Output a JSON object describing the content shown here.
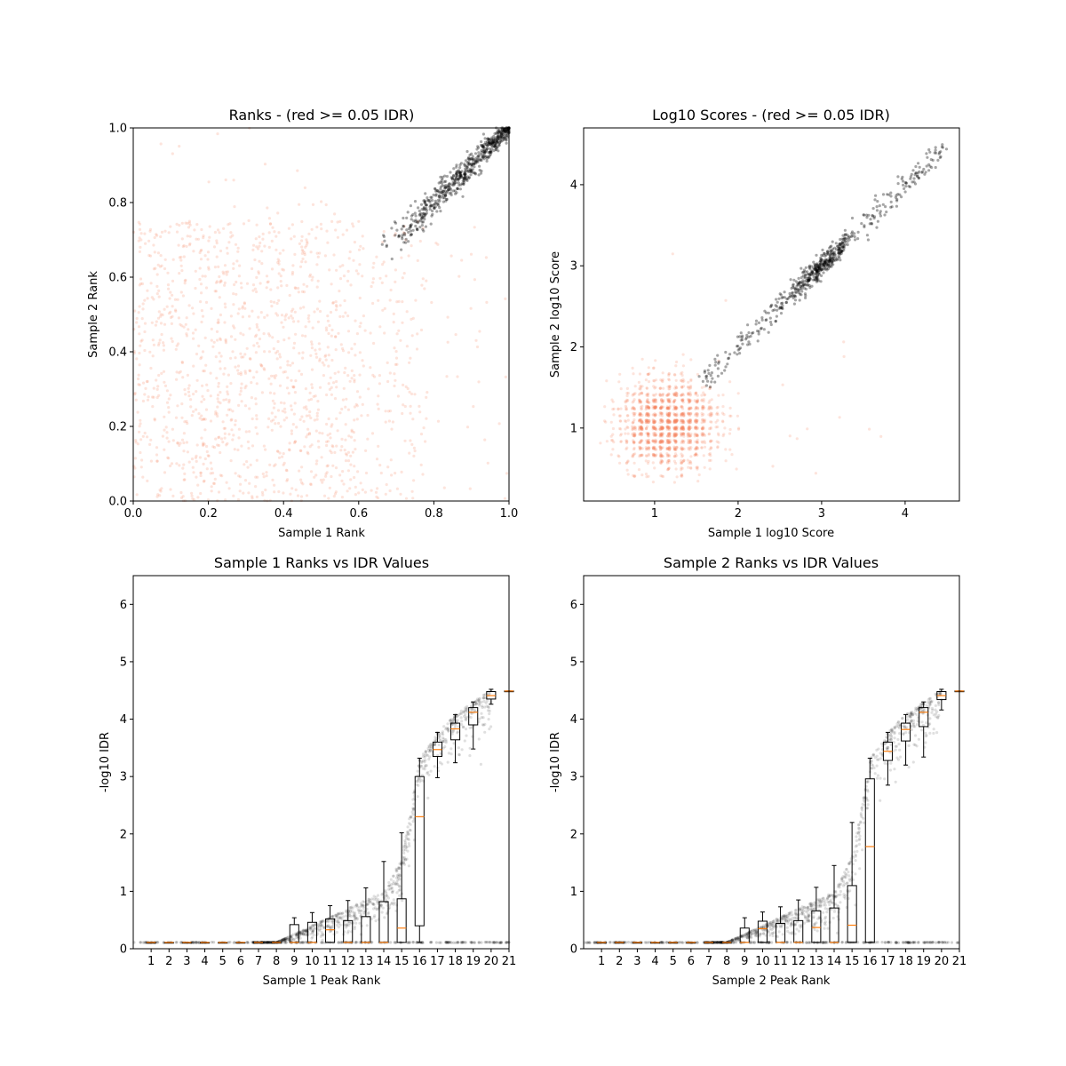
{
  "chart_data": [
    {
      "type": "scatter",
      "title": "Ranks - (red >= 0.05 IDR)",
      "xlabel": "Sample 1 Rank",
      "ylabel": "Sample 2 Rank",
      "xlim": [
        0,
        1
      ],
      "ylim": [
        0,
        1
      ],
      "xticks": [
        0.0,
        0.2,
        0.4,
        0.6,
        0.8,
        1.0
      ],
      "yticks": [
        0.0,
        0.2,
        0.4,
        0.6,
        0.8,
        1.0
      ],
      "xtick_labels": [
        "0.0",
        "0.2",
        "0.4",
        "0.6",
        "0.8",
        "1.0"
      ],
      "ytick_labels": [
        "0.0",
        "0.2",
        "0.4",
        "0.6",
        "0.8",
        "1.0"
      ],
      "grid": false,
      "series": [
        {
          "color": "#f4845f",
          "approx_count": 1400,
          "x_range": [
            0.0,
            0.78
          ],
          "y_range": [
            0.0,
            0.75
          ],
          "distribution": "uniform, sparser above ~0.75, sparse outliers elsewhere"
        },
        {
          "color": "#000000",
          "approx_count": 600,
          "x_range": [
            0.68,
            1.0
          ],
          "y_range": [
            0.68,
            1.0
          ],
          "distribution": "tight diagonal band y ≈ x, densest near 0.85–0.95"
        }
      ]
    },
    {
      "type": "scatter",
      "title": "Log10 Scores - (red >= 0.05 IDR)",
      "xlabel": "Sample 1 log10 Score",
      "ylabel": "Sample 2 log10 Score",
      "xlim": [
        0.15,
        4.65
      ],
      "ylim": [
        0.1,
        4.7
      ],
      "xticks": [
        1,
        2,
        3,
        4
      ],
      "yticks": [
        1,
        2,
        3,
        4
      ],
      "xtick_labels": [
        "1",
        "2",
        "3",
        "4"
      ],
      "ytick_labels": [
        "1",
        "2",
        "3",
        "4"
      ],
      "grid": false,
      "series": [
        {
          "color": "#f4845f",
          "approx_count": 1400,
          "center": [
            1.15,
            1.05
          ],
          "spread": [
            0.3,
            0.28
          ],
          "distribution": "dense cloud x 0.6–1.8, y 0.3–1.8"
        },
        {
          "color": "#000000",
          "approx_count": 600,
          "x_range": [
            1.55,
            4.45
          ],
          "distribution": "diagonal band y ≈ x, densest near (3.0, 3.0)"
        }
      ]
    },
    {
      "type": "box",
      "title": "Sample 1 Ranks vs IDR Values",
      "xlabel": "Sample 1 Peak Rank",
      "ylabel": "-log10 IDR",
      "xlim": [
        0,
        21
      ],
      "ylim": [
        0,
        6.5
      ],
      "xticks": [
        1,
        2,
        3,
        4,
        5,
        6,
        7,
        8,
        9,
        10,
        11,
        12,
        13,
        14,
        15,
        16,
        17,
        18,
        19,
        20,
        21
      ],
      "yticks": [
        0,
        1,
        2,
        3,
        4,
        5,
        6
      ],
      "xtick_labels": [
        "1",
        "2",
        "3",
        "4",
        "5",
        "6",
        "7",
        "8",
        "9",
        "10",
        "11",
        "12",
        "13",
        "14",
        "15",
        "16",
        "17",
        "18",
        "19",
        "20",
        "21"
      ],
      "ytick_labels": [
        "0",
        "1",
        "2",
        "3",
        "4",
        "5",
        "6"
      ],
      "grid": false,
      "boxes": [
        {
          "x": 1,
          "q1": 0.11,
          "median": 0.11,
          "q3": 0.11,
          "whislo": 0.11,
          "whishi": 0.11
        },
        {
          "x": 2,
          "q1": 0.11,
          "median": 0.11,
          "q3": 0.11,
          "whislo": 0.11,
          "whishi": 0.11
        },
        {
          "x": 3,
          "q1": 0.11,
          "median": 0.11,
          "q3": 0.11,
          "whislo": 0.11,
          "whishi": 0.11
        },
        {
          "x": 4,
          "q1": 0.11,
          "median": 0.11,
          "q3": 0.11,
          "whislo": 0.11,
          "whishi": 0.11
        },
        {
          "x": 5,
          "q1": 0.11,
          "median": 0.11,
          "q3": 0.11,
          "whislo": 0.11,
          "whishi": 0.11
        },
        {
          "x": 6,
          "q1": 0.11,
          "median": 0.11,
          "q3": 0.11,
          "whislo": 0.11,
          "whishi": 0.11
        },
        {
          "x": 7,
          "q1": 0.11,
          "median": 0.11,
          "q3": 0.11,
          "whislo": 0.11,
          "whishi": 0.11
        },
        {
          "x": 8,
          "q1": 0.11,
          "median": 0.11,
          "q3": 0.11,
          "whislo": 0.11,
          "whishi": 0.11
        },
        {
          "x": 9,
          "q1": 0.11,
          "median": 0.11,
          "q3": 0.42,
          "whislo": 0.11,
          "whishi": 0.54
        },
        {
          "x": 10,
          "q1": 0.11,
          "median": 0.11,
          "q3": 0.46,
          "whislo": 0.11,
          "whishi": 0.63
        },
        {
          "x": 11,
          "q1": 0.11,
          "median": 0.33,
          "q3": 0.52,
          "whislo": 0.11,
          "whishi": 0.75
        },
        {
          "x": 12,
          "q1": 0.11,
          "median": 0.11,
          "q3": 0.49,
          "whislo": 0.11,
          "whishi": 0.84
        },
        {
          "x": 13,
          "q1": 0.11,
          "median": 0.11,
          "q3": 0.56,
          "whislo": 0.11,
          "whishi": 1.06
        },
        {
          "x": 14,
          "q1": 0.11,
          "median": 0.11,
          "q3": 0.82,
          "whislo": 0.11,
          "whishi": 1.52
        },
        {
          "x": 15,
          "q1": 0.11,
          "median": 0.36,
          "q3": 0.87,
          "whislo": 0.11,
          "whishi": 2.02
        },
        {
          "x": 16,
          "q1": 0.4,
          "median": 2.3,
          "q3": 3.0,
          "whislo": 0.11,
          "whishi": 3.32
        },
        {
          "x": 17,
          "q1": 3.35,
          "median": 3.47,
          "q3": 3.6,
          "whislo": 2.98,
          "whishi": 3.77
        },
        {
          "x": 18,
          "q1": 3.64,
          "median": 3.83,
          "q3": 3.93,
          "whislo": 3.24,
          "whishi": 4.08
        },
        {
          "x": 19,
          "q1": 3.9,
          "median": 4.12,
          "q3": 4.2,
          "whislo": 3.48,
          "whishi": 4.3
        },
        {
          "x": 20,
          "q1": 4.35,
          "median": 4.41,
          "q3": 4.48,
          "whislo": 4.26,
          "whishi": 4.52
        },
        {
          "x": 21,
          "q1": 4.49,
          "median": 4.49,
          "q3": 4.49,
          "whislo": 4.49,
          "whishi": 4.49
        }
      ],
      "scatter_curve": [
        [
          0,
          0.11
        ],
        [
          8,
          0.11
        ],
        [
          11,
          0.55
        ],
        [
          14,
          1.0
        ],
        [
          15,
          1.6
        ],
        [
          15.5,
          2.4
        ],
        [
          16,
          3.3
        ],
        [
          17,
          3.77
        ],
        [
          18,
          4.08
        ],
        [
          19,
          4.3
        ],
        [
          20,
          4.52
        ]
      ]
    },
    {
      "type": "box",
      "title": "Sample 2 Ranks vs IDR Values",
      "xlabel": "Sample 2 Peak Rank",
      "ylabel": "-log10 IDR",
      "xlim": [
        0,
        21
      ],
      "ylim": [
        0,
        6.5
      ],
      "xticks": [
        1,
        2,
        3,
        4,
        5,
        6,
        7,
        8,
        9,
        10,
        11,
        12,
        13,
        14,
        15,
        16,
        17,
        18,
        19,
        20,
        21
      ],
      "yticks": [
        0,
        1,
        2,
        3,
        4,
        5,
        6
      ],
      "xtick_labels": [
        "1",
        "2",
        "3",
        "4",
        "5",
        "6",
        "7",
        "8",
        "9",
        "10",
        "11",
        "12",
        "13",
        "14",
        "15",
        "16",
        "17",
        "18",
        "19",
        "20",
        "21"
      ],
      "ytick_labels": [
        "0",
        "1",
        "2",
        "3",
        "4",
        "5",
        "6"
      ],
      "grid": false,
      "boxes": [
        {
          "x": 1,
          "q1": 0.11,
          "median": 0.11,
          "q3": 0.11,
          "whislo": 0.11,
          "whishi": 0.11
        },
        {
          "x": 2,
          "q1": 0.11,
          "median": 0.11,
          "q3": 0.11,
          "whislo": 0.11,
          "whishi": 0.11
        },
        {
          "x": 3,
          "q1": 0.11,
          "median": 0.11,
          "q3": 0.11,
          "whislo": 0.11,
          "whishi": 0.11
        },
        {
          "x": 4,
          "q1": 0.11,
          "median": 0.11,
          "q3": 0.11,
          "whislo": 0.11,
          "whishi": 0.11
        },
        {
          "x": 5,
          "q1": 0.11,
          "median": 0.11,
          "q3": 0.11,
          "whislo": 0.11,
          "whishi": 0.11
        },
        {
          "x": 6,
          "q1": 0.11,
          "median": 0.11,
          "q3": 0.11,
          "whislo": 0.11,
          "whishi": 0.11
        },
        {
          "x": 7,
          "q1": 0.11,
          "median": 0.11,
          "q3": 0.11,
          "whislo": 0.11,
          "whishi": 0.11
        },
        {
          "x": 8,
          "q1": 0.11,
          "median": 0.11,
          "q3": 0.11,
          "whislo": 0.11,
          "whishi": 0.11
        },
        {
          "x": 9,
          "q1": 0.11,
          "median": 0.11,
          "q3": 0.36,
          "whislo": 0.11,
          "whishi": 0.54
        },
        {
          "x": 10,
          "q1": 0.11,
          "median": 0.35,
          "q3": 0.48,
          "whislo": 0.11,
          "whishi": 0.64
        },
        {
          "x": 11,
          "q1": 0.11,
          "median": 0.11,
          "q3": 0.44,
          "whislo": 0.11,
          "whishi": 0.73
        },
        {
          "x": 12,
          "q1": 0.11,
          "median": 0.11,
          "q3": 0.49,
          "whislo": 0.11,
          "whishi": 0.85
        },
        {
          "x": 13,
          "q1": 0.11,
          "median": 0.37,
          "q3": 0.66,
          "whislo": 0.11,
          "whishi": 1.07
        },
        {
          "x": 14,
          "q1": 0.11,
          "median": 0.11,
          "q3": 0.71,
          "whislo": 0.11,
          "whishi": 1.45
        },
        {
          "x": 15,
          "q1": 0.11,
          "median": 0.41,
          "q3": 1.1,
          "whislo": 0.11,
          "whishi": 2.2
        },
        {
          "x": 16,
          "q1": 0.11,
          "median": 1.78,
          "q3": 2.96,
          "whislo": 0.11,
          "whishi": 3.32
        },
        {
          "x": 17,
          "q1": 3.28,
          "median": 3.44,
          "q3": 3.6,
          "whislo": 2.85,
          "whishi": 3.77
        },
        {
          "x": 18,
          "q1": 3.62,
          "median": 3.82,
          "q3": 3.93,
          "whislo": 3.2,
          "whishi": 4.08
        },
        {
          "x": 19,
          "q1": 3.87,
          "median": 4.12,
          "q3": 4.2,
          "whislo": 3.34,
          "whishi": 4.3
        },
        {
          "x": 20,
          "q1": 4.34,
          "median": 4.41,
          "q3": 4.48,
          "whislo": 4.16,
          "whishi": 4.52
        },
        {
          "x": 21,
          "q1": 4.49,
          "median": 4.49,
          "q3": 4.49,
          "whislo": 4.49,
          "whishi": 4.49
        }
      ],
      "scatter_curve": [
        [
          0,
          0.11
        ],
        [
          8,
          0.11
        ],
        [
          11,
          0.55
        ],
        [
          14,
          1.0
        ],
        [
          15,
          1.6
        ],
        [
          15.5,
          2.4
        ],
        [
          16,
          3.3
        ],
        [
          17,
          3.77
        ],
        [
          18,
          4.08
        ],
        [
          19,
          4.3
        ],
        [
          20,
          4.52
        ]
      ]
    }
  ],
  "colors": {
    "low_idr": "#f4845f",
    "high_idr": "#000000",
    "median": "#ff7f0e",
    "box_edge": "#000000"
  }
}
